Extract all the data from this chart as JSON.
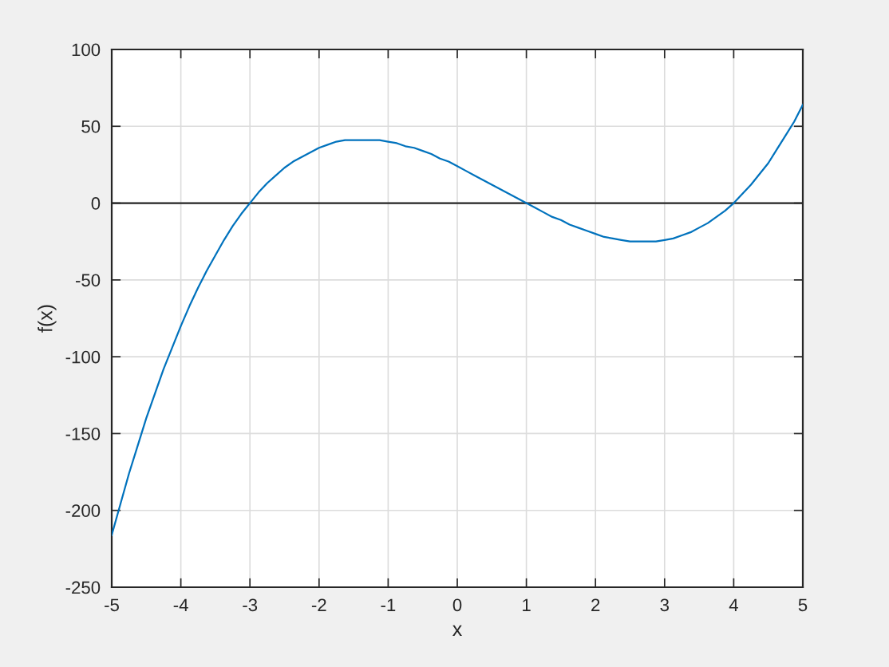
{
  "chart_data": {
    "type": "line",
    "xlabel": "x",
    "ylabel": "f(x)",
    "x": [
      -5,
      -4.875,
      -4.75,
      -4.625,
      -4.5,
      -4.375,
      -4.25,
      -4.125,
      -4,
      -3.875,
      -3.75,
      -3.625,
      -3.5,
      -3.375,
      -3.25,
      -3.125,
      -3,
      -2.875,
      -2.75,
      -2.625,
      -2.5,
      -2.375,
      -2.25,
      -2.125,
      -2,
      -1.875,
      -1.75,
      -1.625,
      -1.5,
      -1.375,
      -1.25,
      -1.125,
      -1,
      -0.875,
      -0.75,
      -0.625,
      -0.5,
      -0.375,
      -0.25,
      -0.125,
      0,
      0.125,
      0.25,
      0.375,
      0.5,
      0.625,
      0.75,
      0.875,
      1,
      1.125,
      1.25,
      1.375,
      1.5,
      1.625,
      1.75,
      1.875,
      2,
      2.125,
      2.25,
      2.375,
      2.5,
      2.625,
      2.75,
      2.875,
      3,
      3.125,
      3.25,
      3.375,
      3.5,
      3.625,
      3.75,
      3.875,
      4,
      4.125,
      4.25,
      4.375,
      4.5,
      4.625,
      4.75,
      4.875,
      5
    ],
    "series": [
      {
        "color": "#0072bd",
        "values": [
          -216,
          -196,
          -176,
          -158,
          -140,
          -124,
          -108,
          -94,
          -80,
          -67,
          -55,
          -44,
          -34,
          -24,
          -15,
          -7,
          0,
          7,
          13,
          18,
          23,
          27,
          30,
          33,
          36,
          38,
          40,
          41,
          41,
          41,
          41,
          41,
          40,
          39,
          37,
          36,
          34,
          32,
          29,
          27,
          24,
          21,
          18,
          15,
          12,
          9,
          6,
          3,
          0,
          -3,
          -6,
          -9,
          -11,
          -14,
          -16,
          -18,
          -20,
          -22,
          -23,
          -24,
          -25,
          -25,
          -25,
          -25,
          -24,
          -23,
          -21,
          -19,
          -16,
          -13,
          -9,
          -5,
          0,
          6,
          12,
          19,
          26,
          35,
          44,
          53,
          64
        ]
      }
    ],
    "xlim": [
      -5,
      5
    ],
    "xticks": [
      -5,
      -4,
      -3,
      -2,
      -1,
      0,
      1,
      2,
      3,
      4,
      5
    ],
    "ylim": [
      -250,
      100
    ],
    "yticks": [
      -250,
      -200,
      -150,
      -100,
      -50,
      0,
      50,
      100
    ],
    "ref_lines": [
      {
        "axis": "y",
        "value": 0,
        "color": "#262626"
      }
    ],
    "grid": true,
    "marker": "none",
    "line_style": "solid"
  }
}
